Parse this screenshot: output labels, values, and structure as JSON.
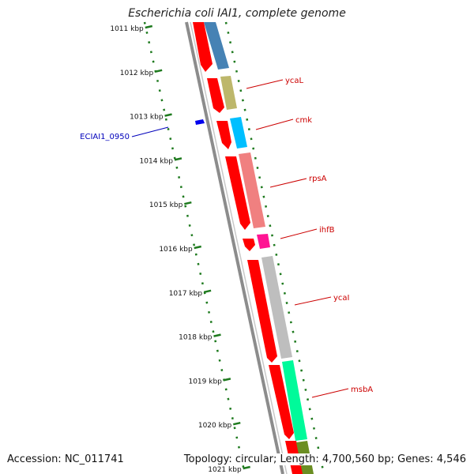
{
  "title": "Escherichia coli IAI1, complete genome",
  "footer": {
    "accession": "Accession: NC_011741",
    "summary": "Topology: circular; Length: 4,700,560 bp; Genes: 4,546"
  },
  "colors": {
    "ruler": "#1e7a1e",
    "forward_gene": "#ff0000",
    "backbone": "#8c8c8c",
    "label_line_red": "#cc0000",
    "label_line_blue": "#0000bb"
  },
  "ticks": [
    {
      "label": "1011 kbp"
    },
    {
      "label": "1012 kbp"
    },
    {
      "label": "1013 kbp"
    },
    {
      "label": "1014 kbp"
    },
    {
      "label": "1015 kbp"
    },
    {
      "label": "1016 kbp"
    },
    {
      "label": "1017 kbp"
    },
    {
      "label": "1018 kbp"
    },
    {
      "label": "1019 kbp"
    },
    {
      "label": "1020 kbp"
    },
    {
      "label": "1021 kbp"
    }
  ],
  "gene_labels": [
    {
      "name": "ycaL",
      "color": "#cc0000"
    },
    {
      "name": "cmk",
      "color": "#cc0000"
    },
    {
      "name": "rpsA",
      "color": "#cc0000"
    },
    {
      "name": "ihfB",
      "color": "#cc0000"
    },
    {
      "name": "ycaI",
      "color": "#cc0000"
    },
    {
      "name": "msbA",
      "color": "#cc0000"
    },
    {
      "name": "ECIAI1_0950",
      "color": "#0000bb"
    }
  ]
}
